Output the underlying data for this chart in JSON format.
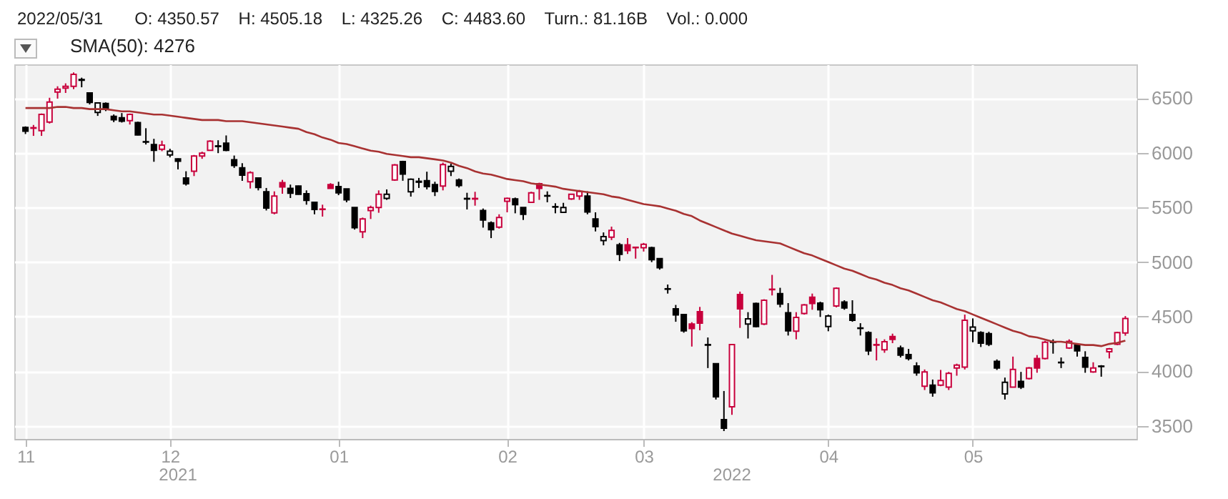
{
  "chart_data": {
    "type": "candlestick",
    "title": "2022/05/31",
    "subtitle": "O: 4350.57    H: 4505.18    L: 4325.26    C: 4483.60    Turn.: 81.16B    Vol.: 0.000",
    "categories": [
      "11",
      null,
      null,
      null,
      null,
      null,
      null,
      null,
      null,
      null,
      null,
      null,
      null,
      null,
      null,
      null,
      null,
      null,
      "12",
      null,
      null,
      null,
      null,
      null,
      null,
      null,
      null,
      null,
      null,
      null,
      null,
      null,
      null,
      null,
      null,
      null,
      null,
      null,
      null,
      "01",
      null,
      null,
      null,
      null,
      null,
      null,
      null,
      null,
      null,
      null,
      null,
      null,
      null,
      null,
      null,
      null,
      null,
      null,
      null,
      null,
      "02",
      null,
      null,
      null,
      null,
      null,
      null,
      null,
      null,
      null,
      null,
      null,
      null,
      null,
      null,
      null,
      null,
      "03",
      null,
      null,
      null,
      null,
      null,
      null,
      null,
      null,
      null,
      null,
      null,
      null,
      null,
      null,
      null,
      null,
      null,
      null,
      null,
      null,
      null,
      null,
      "04",
      null,
      null,
      null,
      null,
      null,
      null,
      null,
      null,
      null,
      null,
      null,
      null,
      null,
      null,
      null,
      null,
      null,
      "05",
      null,
      null,
      null,
      null,
      null,
      null,
      null,
      null,
      null,
      null,
      null,
      null,
      null,
      null,
      null,
      null,
      null,
      null,
      null
    ],
    "ohlc": [
      [
        6233,
        6242,
        6172,
        6198
      ],
      [
        6225,
        6255,
        6155,
        6230
      ],
      [
        6203,
        6360,
        6155,
        6351
      ],
      [
        6281,
        6504,
        6268,
        6465
      ],
      [
        6557,
        6609,
        6496,
        6583
      ],
      [
        6592,
        6636,
        6548,
        6609
      ],
      [
        6609,
        6736,
        6583,
        6719
      ],
      [
        6671,
        6688,
        6600,
        6665
      ],
      [
        6548,
        6548,
        6443,
        6461
      ],
      [
        6369,
        6456,
        6338,
        6456
      ],
      [
        6452,
        6461,
        6382,
        6399
      ],
      [
        6334,
        6351,
        6281,
        6303
      ],
      [
        6321,
        6364,
        6277,
        6290
      ],
      [
        6295,
        6360,
        6259,
        6351
      ],
      [
        6277,
        6285,
        6160,
        6163
      ],
      [
        6102,
        6225,
        6076,
        6098
      ],
      [
        6076,
        6128,
        5918,
        6023
      ],
      [
        6032,
        6111,
        6015,
        6071
      ],
      [
        5980,
        6037,
        5958,
        6015
      ],
      [
        5945,
        5949,
        5848,
        5923
      ],
      [
        5770,
        5831,
        5700,
        5717
      ],
      [
        5831,
        5980,
        5787,
        5971
      ],
      [
        5971,
        6010,
        5945,
        5997
      ],
      [
        6023,
        6115,
        6019,
        6107
      ],
      [
        6063,
        6115,
        5997,
        6058
      ],
      [
        6089,
        6159,
        6015,
        6023
      ],
      [
        5936,
        5975,
        5862,
        5883
      ],
      [
        5862,
        5905,
        5743,
        5796
      ],
      [
        5735,
        5831,
        5673,
        5818
      ],
      [
        5770,
        5770,
        5656,
        5682
      ],
      [
        5643,
        5678,
        5472,
        5494
      ],
      [
        5450,
        5647,
        5437,
        5604
      ],
      [
        5726,
        5752,
        5625,
        5687
      ],
      [
        5674,
        5709,
        5586,
        5630
      ],
      [
        5695,
        5700,
        5617,
        5621
      ],
      [
        5625,
        5656,
        5525,
        5564
      ],
      [
        5547,
        5547,
        5437,
        5481
      ],
      [
        5481,
        5525,
        5416,
        5485
      ],
      [
        5709,
        5722,
        5674,
        5674
      ],
      [
        5691,
        5735,
        5612,
        5634
      ],
      [
        5669,
        5669,
        5547,
        5569
      ],
      [
        5499,
        5499,
        5297,
        5315
      ],
      [
        5276,
        5407,
        5219,
        5394
      ],
      [
        5472,
        5516,
        5394,
        5499
      ],
      [
        5499,
        5656,
        5451,
        5621
      ],
      [
        5582,
        5665,
        5569,
        5621
      ],
      [
        5752,
        5897,
        5744,
        5888
      ],
      [
        5919,
        5927,
        5744,
        5805
      ],
      [
        5643,
        5765,
        5599,
        5757
      ],
      [
        5739,
        5770,
        5678,
        5731
      ],
      [
        5744,
        5827,
        5665,
        5691
      ],
      [
        5709,
        5735,
        5604,
        5647
      ],
      [
        5695,
        5910,
        5656,
        5892
      ],
      [
        5831,
        5901,
        5787,
        5875
      ],
      [
        5752,
        5765,
        5682,
        5700
      ],
      [
        5582,
        5634,
        5481,
        5577
      ],
      [
        5577,
        5643,
        5516,
        5582
      ],
      [
        5472,
        5490,
        5315,
        5385
      ],
      [
        5359,
        5372,
        5219,
        5297
      ],
      [
        5319,
        5437,
        5306,
        5407
      ],
      [
        5556,
        5590,
        5455,
        5582
      ],
      [
        5577,
        5590,
        5446,
        5525
      ],
      [
        5499,
        5499,
        5385,
        5437
      ],
      [
        5547,
        5643,
        5542,
        5634
      ],
      [
        5717,
        5726,
        5569,
        5674
      ],
      [
        5608,
        5647,
        5547,
        5604
      ],
      [
        5507,
        5538,
        5446,
        5503
      ],
      [
        5455,
        5542,
        5455,
        5499
      ],
      [
        5577,
        5625,
        5569,
        5621
      ],
      [
        5604,
        5660,
        5569,
        5647
      ],
      [
        5604,
        5647,
        5437,
        5459
      ],
      [
        5394,
        5455,
        5280,
        5324
      ],
      [
        5197,
        5271,
        5153,
        5232
      ],
      [
        5227,
        5324,
        5201,
        5289
      ],
      [
        5157,
        5175,
        5009,
        5070
      ],
      [
        5157,
        5219,
        5074,
        5105
      ],
      [
        5131,
        5140,
        5031,
        5135
      ],
      [
        5131,
        5175,
        5096,
        5162
      ],
      [
        5131,
        5140,
        4999,
        5022
      ],
      [
        5031,
        5031,
        4930,
        4948
      ],
      [
        4755,
        4794,
        4711,
        4751
      ],
      [
        4571,
        4607,
        4453,
        4515
      ],
      [
        4519,
        4519,
        4353,
        4370
      ],
      [
        4432,
        4449,
        4226,
        4392
      ],
      [
        4545,
        4589,
        4375,
        4440
      ],
      [
        4244,
        4309,
        4029,
        4239
      ],
      [
        4069,
        4069,
        3741,
        3767
      ],
      [
        3557,
        3819,
        3452,
        3478
      ],
      [
        3675,
        4244,
        3601,
        4244
      ],
      [
        4702,
        4729,
        4397,
        4571
      ],
      [
        4432,
        4541,
        4300,
        4480
      ],
      [
        4620,
        4628,
        4401,
        4410
      ],
      [
        4432,
        4659,
        4423,
        4650
      ],
      [
        4747,
        4882,
        4694,
        4751
      ],
      [
        4711,
        4764,
        4585,
        4615
      ],
      [
        4536,
        4624,
        4327,
        4370
      ],
      [
        4366,
        4541,
        4292,
        4493
      ],
      [
        4528,
        4615,
        4519,
        4607
      ],
      [
        4677,
        4711,
        4563,
        4620
      ],
      [
        4624,
        4637,
        4497,
        4563
      ],
      [
        4410,
        4519,
        4366,
        4506
      ],
      [
        4598,
        4768,
        4585,
        4760
      ],
      [
        4633,
        4650,
        4563,
        4580
      ],
      [
        4519,
        4650,
        4453,
        4467
      ],
      [
        4396,
        4440,
        4327,
        4392
      ],
      [
        4353,
        4366,
        4148,
        4187
      ],
      [
        4239,
        4301,
        4099,
        4244
      ],
      [
        4196,
        4292,
        4169,
        4270
      ],
      [
        4318,
        4344,
        4257,
        4292
      ],
      [
        4213,
        4235,
        4126,
        4148
      ],
      [
        4152,
        4204,
        4099,
        4117
      ],
      [
        4047,
        4082,
        3959,
        3986
      ],
      [
        3863,
        4016,
        3828,
        3994
      ],
      [
        3872,
        3924,
        3767,
        3802
      ],
      [
        3872,
        4012,
        3863,
        3915
      ],
      [
        3854,
        3994,
        3828,
        3981
      ],
      [
        4029,
        4069,
        3959,
        4056
      ],
      [
        4038,
        4519,
        4016,
        4467
      ],
      [
        4370,
        4484,
        4265,
        4405
      ],
      [
        4353,
        4366,
        4222,
        4257
      ],
      [
        4344,
        4362,
        4230,
        4248
      ],
      [
        4091,
        4108,
        4012,
        4029
      ],
      [
        3793,
        3942,
        3741,
        3898
      ],
      [
        3854,
        4134,
        3854,
        4016
      ],
      [
        3907,
        3994,
        3837,
        3854
      ],
      [
        3933,
        4038,
        3924,
        4029
      ],
      [
        4117,
        4148,
        3986,
        4029
      ],
      [
        4117,
        4279,
        4108,
        4265
      ],
      [
        4270,
        4292,
        4161,
        4265
      ],
      [
        4082,
        4126,
        4029,
        4078
      ],
      [
        4213,
        4292,
        4204,
        4274
      ],
      [
        4239,
        4257,
        4134,
        4187
      ],
      [
        4126,
        4183,
        3986,
        4038
      ],
      [
        3994,
        4082,
        3986,
        4029
      ],
      [
        4047,
        4056,
        3950,
        4043
      ],
      [
        4178,
        4213,
        4117,
        4204
      ],
      [
        4248,
        4362,
        4239,
        4353
      ],
      [
        4350.57,
        4505.18,
        4325.26,
        4483.6
      ]
    ],
    "colors": [
      "#000000",
      "#c8003c",
      "#c8003c",
      "#c8003c",
      "#c8003c",
      "#c8003c",
      "#c8003c",
      "#000000",
      "#000000",
      "#000000",
      "#000000",
      "#000000",
      "#000000",
      "#c8003c",
      "#000000",
      "#000000",
      "#000000",
      "#c8003c",
      "#000000",
      "#000000",
      "#000000",
      "#c8003c",
      "#c8003c",
      "#c8003c",
      "#000000",
      "#000000",
      "#000000",
      "#000000",
      "#c8003c",
      "#000000",
      "#000000",
      "#c8003c",
      "#c8003c",
      "#000000",
      "#000000",
      "#000000",
      "#000000",
      "#c8003c",
      "#c8003c",
      "#000000",
      "#000000",
      "#000000",
      "#c8003c",
      "#c8003c",
      "#c8003c",
      "#000000",
      "#c8003c",
      "#000000",
      "#000000",
      "#000000",
      "#000000",
      "#000000",
      "#c8003c",
      "#000000",
      "#000000",
      "#000000",
      "#c8003c",
      "#000000",
      "#000000",
      "#c8003c",
      "#c8003c",
      "#000000",
      "#000000",
      "#c8003c",
      "#c8003c",
      "#000000",
      "#000000",
      "#000000",
      "#c8003c",
      "#c8003c",
      "#000000",
      "#000000",
      "#000000",
      "#c8003c",
      "#000000",
      "#c8003c",
      "#c8003c",
      "#c8003c",
      "#000000",
      "#000000",
      "#000000",
      "#000000",
      "#000000",
      "#c8003c",
      "#c8003c",
      "#000000",
      "#000000",
      "#000000",
      "#c8003c",
      "#c8003c",
      "#000000",
      "#000000",
      "#c8003c",
      "#c8003c",
      "#000000",
      "#000000",
      "#c8003c",
      "#c8003c",
      "#c8003c",
      "#000000",
      "#000000",
      "#c8003c",
      "#000000",
      "#000000",
      "#000000",
      "#000000",
      "#c8003c",
      "#c8003c",
      "#c8003c",
      "#000000",
      "#000000",
      "#000000",
      "#c8003c",
      "#000000",
      "#c8003c",
      "#c8003c",
      "#c8003c",
      "#c8003c",
      "#000000",
      "#000000",
      "#000000",
      "#000000",
      "#000000",
      "#c8003c",
      "#000000",
      "#c8003c",
      "#c8003c",
      "#c8003c",
      "#000000",
      "#000000",
      "#c8003c",
      "#000000",
      "#000000",
      "#c8003c",
      "#000000",
      "#c8003c",
      "#c8003c",
      "#c8003c"
    ],
    "series": [
      {
        "type": "line",
        "name": "SMA(50): 4276",
        "color": "#a83232",
        "values": [
          6410,
          6410,
          6410,
          6410,
          6420,
          6420,
          6410,
          6410,
          6400,
          6400,
          6400,
          6390,
          6380,
          6380,
          6370,
          6360,
          6350,
          6350,
          6340,
          6330,
          6320,
          6310,
          6300,
          6300,
          6300,
          6290,
          6290,
          6290,
          6280,
          6270,
          6260,
          6250,
          6240,
          6230,
          6220,
          6190,
          6170,
          6140,
          6120,
          6090,
          6080,
          6060,
          6040,
          6020,
          6010,
          5990,
          5980,
          5970,
          5960,
          5960,
          5950,
          5940,
          5930,
          5910,
          5880,
          5860,
          5830,
          5810,
          5800,
          5780,
          5760,
          5750,
          5740,
          5720,
          5710,
          5700,
          5690,
          5670,
          5660,
          5650,
          5640,
          5630,
          5620,
          5600,
          5590,
          5570,
          5550,
          5530,
          5520,
          5510,
          5490,
          5470,
          5440,
          5420,
          5380,
          5350,
          5320,
          5290,
          5260,
          5240,
          5220,
          5200,
          5190,
          5180,
          5170,
          5140,
          5110,
          5080,
          5060,
          5030,
          5000,
          4970,
          4940,
          4920,
          4890,
          4860,
          4840,
          4810,
          4790,
          4760,
          4740,
          4710,
          4680,
          4650,
          4630,
          4600,
          4570,
          4550,
          4520,
          4490,
          4460,
          4430,
          4400,
          4370,
          4350,
          4320,
          4310,
          4290,
          4270,
          4270,
          4260,
          4250,
          4240,
          4240,
          4230,
          4250,
          4260,
          4280
        ]
      }
    ],
    "ylim": [
      3380,
      6810
    ],
    "yticks": [
      3500,
      4000,
      4500,
      5000,
      5500,
      6000,
      6500
    ],
    "grid": true,
    "legend": "top left",
    "annotations": [
      "2021",
      "2022"
    ]
  }
}
